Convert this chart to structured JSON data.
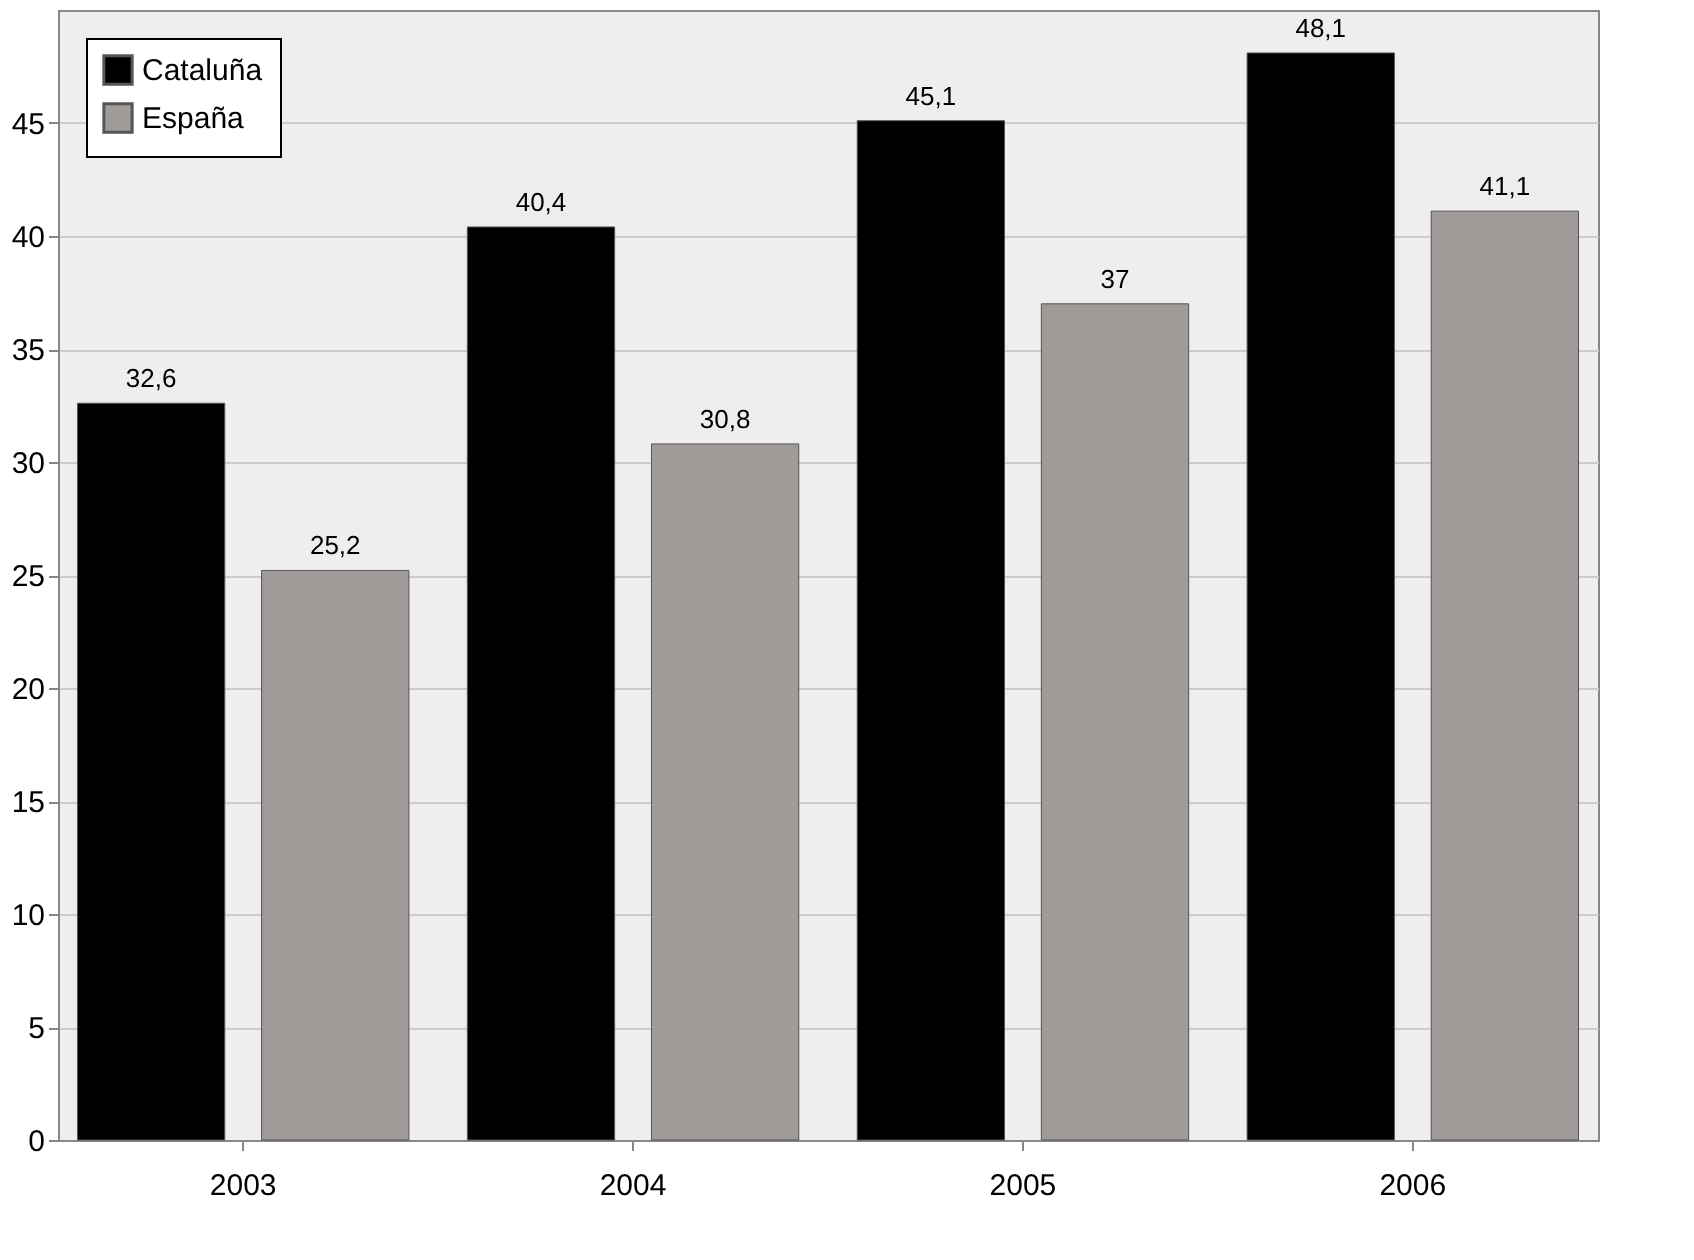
{
  "chart_data": {
    "type": "bar",
    "categories": [
      "2003",
      "2004",
      "2005",
      "2006"
    ],
    "series": [
      {
        "name": "Cataluña",
        "color": "#000000",
        "values": [
          32.6,
          40.4,
          45.1,
          48.1
        ],
        "value_labels": [
          "32,6",
          "40,4",
          "45,1",
          "48,1"
        ]
      },
      {
        "name": "España",
        "color": "#a09a98",
        "values": [
          25.2,
          30.8,
          37,
          41.1
        ],
        "value_labels": [
          "25,2",
          "30,8",
          "37",
          "41,1"
        ]
      }
    ],
    "ylim": [
      0,
      50
    ],
    "yticks": [
      0,
      5,
      10,
      15,
      20,
      25,
      30,
      35,
      40,
      45
    ],
    "grid": "y",
    "legend": "top left"
  }
}
